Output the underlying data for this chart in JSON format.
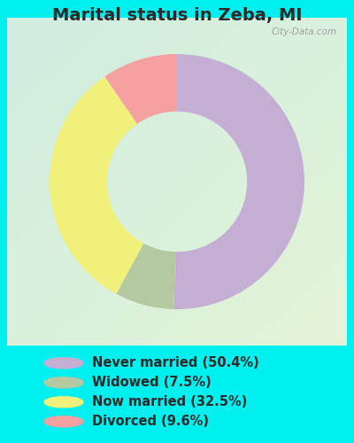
{
  "title": "Marital status in Zeba, MI",
  "slices": [
    50.4,
    7.5,
    32.5,
    9.6
  ],
  "labels": [
    "Never married (50.4%)",
    "Widowed (7.5%)",
    "Now married (32.5%)",
    "Divorced (9.6%)"
  ],
  "colors": [
    "#c4aed4",
    "#b5c9a0",
    "#f0f07a",
    "#f5a0a0"
  ],
  "bg_outer": "#00f0f0",
  "chart_bg_tl": "#d8f0e0",
  "chart_bg_br": "#e8f8e0",
  "donut_width": 0.45,
  "start_angle": 90,
  "title_fontsize": 14,
  "legend_fontsize": 10.5,
  "watermark": "City-Data.com",
  "title_color": "#2a2a2a",
  "legend_text_color": "#2a2a2a"
}
